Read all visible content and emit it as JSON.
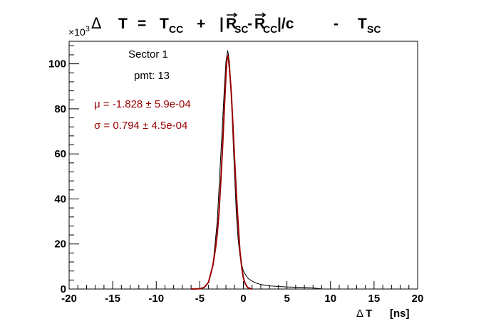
{
  "chart_data": {
    "type": "line",
    "title": "Δ T = T_CC + |R_SC − R_CC|/c − T_SC",
    "title_parts": {
      "delta": "Δ",
      "t": "T",
      "eq": "=",
      "t_cc": "T",
      "sub_cc": "CC",
      "plus": "+",
      "bar_open": "|",
      "r_sc": "R",
      "sub_sc": "SC",
      "minus1": "-",
      "r_cc": "R",
      "sub_cc2": "CC",
      "over_c": "|/c",
      "minus2": "-",
      "t_sc": "T",
      "sub_sc2": "SC"
    },
    "xlabel": "Δ T [ns]",
    "xlabel_parts": {
      "delta": "Δ",
      "t": "T",
      "unit": "[ns]"
    },
    "y_multiplier": {
      "base": "×10",
      "exp": "3"
    },
    "xlim": [
      -20,
      20
    ],
    "ylim": [
      0,
      110
    ],
    "x_ticks": [
      -20,
      -15,
      -10,
      -5,
      0,
      5,
      10,
      15,
      20
    ],
    "y_ticks": [
      0,
      20,
      40,
      60,
      80,
      100
    ],
    "grid": false,
    "annotations": {
      "sector": "Sector 1",
      "pmt": "pmt: 13",
      "mu": "μ = -1.828 ± 5.9e-04",
      "sigma": "σ = 0.794 ± 4.5e-04"
    },
    "series": [
      {
        "role": "histogram",
        "color": "#000000",
        "x": [
          -20,
          -6,
          -5,
          -4.5,
          -4,
          -3.5,
          -3.0,
          -2.5,
          -2.2,
          -2.0,
          -1.8,
          -1.6,
          -1.4,
          -1.2,
          -1.0,
          -0.8,
          -0.6,
          -0.4,
          -0.2,
          0.0,
          0.3,
          0.6,
          1.0,
          1.5,
          2.0,
          3.0,
          4.0,
          5.0,
          6.0,
          7.0,
          8.0,
          8.6,
          9.0,
          10.0,
          20
        ],
        "y": [
          0,
          0,
          0.2,
          0.8,
          3,
          10,
          30,
          66,
          88,
          101,
          106,
          101,
          88,
          68,
          50,
          33,
          22,
          15,
          11,
          8,
          6,
          4.5,
          3.5,
          2.6,
          2.0,
          1.4,
          1.1,
          0.9,
          0.8,
          0.7,
          0.5,
          0.2,
          0.05,
          0,
          0
        ]
      },
      {
        "role": "fit",
        "color": "#990000",
        "x": [
          -6,
          -5,
          -4.5,
          -4.0,
          -3.5,
          -3.2,
          -3.0,
          -2.8,
          -2.6,
          -2.4,
          -2.2,
          -2.0,
          -1.9,
          -1.828,
          -1.7,
          -1.6,
          -1.4,
          -1.2,
          -1.0,
          -0.8,
          -0.6,
          -0.4,
          -0.2,
          0.0,
          0.2,
          0.5,
          1.0
        ],
        "y": [
          0,
          0.1,
          0.7,
          3.0,
          10.5,
          18,
          24.5,
          34,
          47,
          62,
          79,
          95,
          101,
          104,
          102,
          98,
          88,
          73,
          57,
          42,
          29,
          17,
          10,
          5,
          2.5,
          0.6,
          0
        ]
      }
    ]
  }
}
